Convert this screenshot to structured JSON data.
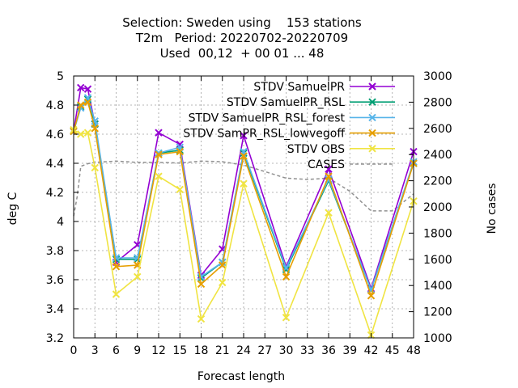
{
  "chart_data": {
    "type": "line",
    "title_lines": [
      "Selection: Sweden using    153 stations",
      "T2m   Period: 20220702-20220709",
      "Used  00,12  + 00 01 ... 48"
    ],
    "xlabel": "Forecast length",
    "ylabel": "deg C",
    "y2label": "No cases",
    "xlim": [
      0,
      48
    ],
    "ylim": [
      3.2,
      5.0
    ],
    "y2lim": [
      1000,
      3000
    ],
    "xticks": [
      0,
      3,
      6,
      9,
      12,
      15,
      18,
      21,
      24,
      27,
      30,
      33,
      36,
      39,
      42,
      45,
      48
    ],
    "yticks": [
      "3.2",
      "3.4",
      "3.6",
      "3.8",
      "4",
      "4.2",
      "4.4",
      "4.6",
      "4.8",
      "5"
    ],
    "y2ticks": [
      "1000",
      "1200",
      "1400",
      "1600",
      "1800",
      "2000",
      "2200",
      "2400",
      "2600",
      "2800",
      "3000"
    ],
    "grid": true,
    "legend_position": "top-right",
    "x": [
      0,
      1,
      2,
      3,
      6,
      9,
      12,
      15,
      18,
      21,
      24,
      30,
      36,
      42,
      48
    ],
    "series": [
      {
        "name": "STDV SamuelPR",
        "color": "#9400d3",
        "marker": "x",
        "values": [
          4.62,
          4.92,
          4.91,
          4.67,
          3.72,
          3.84,
          4.61,
          4.53,
          3.63,
          3.81,
          4.59,
          3.69,
          4.36,
          3.54,
          4.48
        ]
      },
      {
        "name": "STDV SamuelPR_RSL",
        "color": "#009e73",
        "marker": "x",
        "values": [
          4.62,
          4.79,
          4.84,
          4.67,
          3.74,
          3.74,
          4.47,
          4.49,
          3.61,
          3.72,
          4.47,
          3.67,
          4.28,
          3.53,
          4.4
        ]
      },
      {
        "name": "STDV SamuelPR_RSL_forest",
        "color": "#56b4e9",
        "marker": "x",
        "values": [
          4.62,
          4.78,
          4.85,
          4.69,
          3.75,
          3.75,
          4.47,
          4.51,
          3.62,
          3.72,
          4.48,
          3.68,
          4.29,
          3.53,
          4.41
        ]
      },
      {
        "name": "STDV SamPR_RSL_lowvegoff",
        "color": "#e69f00",
        "marker": "x",
        "values": [
          4.62,
          4.8,
          4.82,
          4.64,
          3.69,
          3.7,
          4.46,
          4.48,
          3.57,
          3.7,
          4.45,
          3.62,
          4.31,
          3.49,
          4.4
        ]
      },
      {
        "name": "STDV OBS",
        "color": "#f0e442",
        "marker": "x",
        "values": [
          4.63,
          4.6,
          4.61,
          4.37,
          3.5,
          3.62,
          4.31,
          4.22,
          3.33,
          3.58,
          4.26,
          3.34,
          4.06,
          3.22,
          4.14
        ]
      }
    ],
    "cases": {
      "name": "CASES",
      "color": "#909090",
      "axis": "y2",
      "x": [
        0,
        0.5,
        1,
        2,
        3,
        6,
        9,
        12,
        15,
        18,
        21,
        24,
        27,
        30,
        33,
        36,
        39,
        42,
        45,
        48
      ],
      "values": [
        1930,
        2080,
        2310,
        2330,
        2340,
        2350,
        2340,
        2340,
        2335,
        2350,
        2345,
        2320,
        2270,
        2220,
        2210,
        2220,
        2120,
        1970,
        1970,
        2100
      ]
    }
  }
}
